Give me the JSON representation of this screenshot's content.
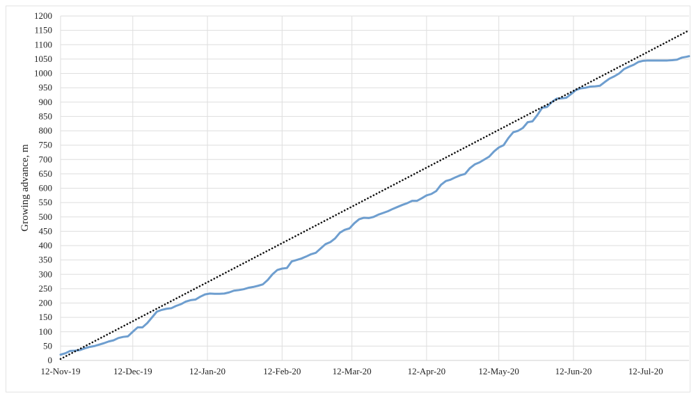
{
  "chart_data": {
    "type": "line",
    "title": "",
    "xlabel": "",
    "ylabel": "Growing advance, m",
    "xlim": [
      "2019-11-12",
      "2020-07-30"
    ],
    "ylim": [
      0,
      1200
    ],
    "y_ticks": [
      0,
      50,
      100,
      150,
      200,
      250,
      300,
      350,
      400,
      450,
      500,
      550,
      600,
      650,
      700,
      750,
      800,
      850,
      900,
      950,
      1000,
      1050,
      1100,
      1150,
      1200
    ],
    "x_tick_labels": [
      {
        "date": "2019-11-12",
        "label": "12-Nov-19"
      },
      {
        "date": "2019-12-12",
        "label": "12-Dec-19"
      },
      {
        "date": "2020-01-12",
        "label": "12-Jan-20"
      },
      {
        "date": "2020-02-12",
        "label": "12-Feb-20"
      },
      {
        "date": "2020-03-12",
        "label": "12-Mar-20"
      },
      {
        "date": "2020-04-12",
        "label": "12-Apr-20"
      },
      {
        "date": "2020-05-12",
        "label": "12-May-20"
      },
      {
        "date": "2020-06-12",
        "label": "12-Jun-20"
      },
      {
        "date": "2020-07-12",
        "label": "12-Jul-20"
      }
    ],
    "grid": "vertical and horizontal",
    "legend": "none",
    "series": [
      {
        "style": "solid",
        "color": "#6e9ecf",
        "points": [
          [
            "2019-11-12",
            20
          ],
          [
            "2019-11-14",
            25
          ],
          [
            "2019-11-16",
            33
          ],
          [
            "2019-11-18",
            34
          ],
          [
            "2019-11-20",
            36
          ],
          [
            "2019-11-22",
            42
          ],
          [
            "2019-11-24",
            47
          ],
          [
            "2019-11-26",
            50
          ],
          [
            "2019-11-28",
            55
          ],
          [
            "2019-11-30",
            60
          ],
          [
            "2019-12-02",
            66
          ],
          [
            "2019-12-04",
            70
          ],
          [
            "2019-12-06",
            78
          ],
          [
            "2019-12-08",
            82
          ],
          [
            "2019-12-10",
            84
          ],
          [
            "2019-12-12",
            100
          ],
          [
            "2019-12-14",
            115
          ],
          [
            "2019-12-16",
            115
          ],
          [
            "2019-12-18",
            130
          ],
          [
            "2019-12-20",
            150
          ],
          [
            "2019-12-22",
            170
          ],
          [
            "2019-12-24",
            176
          ],
          [
            "2019-12-26",
            180
          ],
          [
            "2019-12-28",
            182
          ],
          [
            "2019-12-30",
            190
          ],
          [
            "2020-01-01",
            196
          ],
          [
            "2020-01-03",
            205
          ],
          [
            "2020-01-05",
            210
          ],
          [
            "2020-01-07",
            212
          ],
          [
            "2020-01-09",
            222
          ],
          [
            "2020-01-11",
            230
          ],
          [
            "2020-01-13",
            233
          ],
          [
            "2020-01-15",
            232
          ],
          [
            "2020-01-17",
            232
          ],
          [
            "2020-01-19",
            233
          ],
          [
            "2020-01-21",
            237
          ],
          [
            "2020-01-23",
            243
          ],
          [
            "2020-01-25",
            245
          ],
          [
            "2020-01-27",
            248
          ],
          [
            "2020-01-29",
            253
          ],
          [
            "2020-01-31",
            256
          ],
          [
            "2020-02-02",
            260
          ],
          [
            "2020-02-04",
            265
          ],
          [
            "2020-02-06",
            280
          ],
          [
            "2020-02-08",
            300
          ],
          [
            "2020-02-10",
            315
          ],
          [
            "2020-02-12",
            320
          ],
          [
            "2020-02-14",
            322
          ],
          [
            "2020-02-16",
            345
          ],
          [
            "2020-02-18",
            350
          ],
          [
            "2020-02-20",
            355
          ],
          [
            "2020-02-22",
            362
          ],
          [
            "2020-02-24",
            370
          ],
          [
            "2020-02-26",
            375
          ],
          [
            "2020-02-28",
            390
          ],
          [
            "2020-03-01",
            405
          ],
          [
            "2020-03-03",
            412
          ],
          [
            "2020-03-05",
            425
          ],
          [
            "2020-03-07",
            445
          ],
          [
            "2020-03-09",
            455
          ],
          [
            "2020-03-11",
            460
          ],
          [
            "2020-03-13",
            478
          ],
          [
            "2020-03-15",
            492
          ],
          [
            "2020-03-17",
            497
          ],
          [
            "2020-03-19",
            496
          ],
          [
            "2020-03-21",
            500
          ],
          [
            "2020-03-23",
            508
          ],
          [
            "2020-03-25",
            514
          ],
          [
            "2020-03-27",
            520
          ],
          [
            "2020-03-29",
            528
          ],
          [
            "2020-03-31",
            535
          ],
          [
            "2020-04-02",
            542
          ],
          [
            "2020-04-04",
            548
          ],
          [
            "2020-04-06",
            556
          ],
          [
            "2020-04-08",
            556
          ],
          [
            "2020-04-10",
            565
          ],
          [
            "2020-04-12",
            575
          ],
          [
            "2020-04-14",
            580
          ],
          [
            "2020-04-16",
            590
          ],
          [
            "2020-04-18",
            612
          ],
          [
            "2020-04-20",
            625
          ],
          [
            "2020-04-22",
            630
          ],
          [
            "2020-04-24",
            638
          ],
          [
            "2020-04-26",
            645
          ],
          [
            "2020-04-28",
            650
          ],
          [
            "2020-04-30",
            670
          ],
          [
            "2020-05-02",
            683
          ],
          [
            "2020-05-04",
            690
          ],
          [
            "2020-05-06",
            700
          ],
          [
            "2020-05-08",
            710
          ],
          [
            "2020-05-10",
            728
          ],
          [
            "2020-05-12",
            742
          ],
          [
            "2020-05-14",
            750
          ],
          [
            "2020-05-16",
            775
          ],
          [
            "2020-05-18",
            795
          ],
          [
            "2020-05-20",
            800
          ],
          [
            "2020-05-22",
            810
          ],
          [
            "2020-05-24",
            830
          ],
          [
            "2020-05-26",
            833
          ],
          [
            "2020-05-28",
            855
          ],
          [
            "2020-05-30",
            880
          ],
          [
            "2020-06-01",
            883
          ],
          [
            "2020-06-03",
            900
          ],
          [
            "2020-06-05",
            912
          ],
          [
            "2020-06-07",
            913
          ],
          [
            "2020-06-09",
            915
          ],
          [
            "2020-06-11",
            928
          ],
          [
            "2020-06-13",
            942
          ],
          [
            "2020-06-15",
            948
          ],
          [
            "2020-06-17",
            950
          ],
          [
            "2020-06-19",
            954
          ],
          [
            "2020-06-21",
            955
          ],
          [
            "2020-06-23",
            957
          ],
          [
            "2020-06-25",
            970
          ],
          [
            "2020-06-27",
            982
          ],
          [
            "2020-06-29",
            990
          ],
          [
            "2020-07-01",
            1000
          ],
          [
            "2020-07-03",
            1015
          ],
          [
            "2020-07-05",
            1023
          ],
          [
            "2020-07-07",
            1030
          ],
          [
            "2020-07-09",
            1040
          ],
          [
            "2020-07-11",
            1044
          ],
          [
            "2020-07-13",
            1045
          ],
          [
            "2020-07-15",
            1045
          ],
          [
            "2020-07-17",
            1045
          ],
          [
            "2020-07-19",
            1045
          ],
          [
            "2020-07-21",
            1045
          ],
          [
            "2020-07-23",
            1046
          ],
          [
            "2020-07-25",
            1048
          ],
          [
            "2020-07-27",
            1055
          ],
          [
            "2020-07-29",
            1058
          ],
          [
            "2020-07-30",
            1060
          ]
        ]
      },
      {
        "style": "dotted",
        "color": "#111111",
        "points": [
          [
            "2019-11-12",
            5
          ],
          [
            "2020-07-30",
            1150
          ]
        ]
      }
    ]
  }
}
